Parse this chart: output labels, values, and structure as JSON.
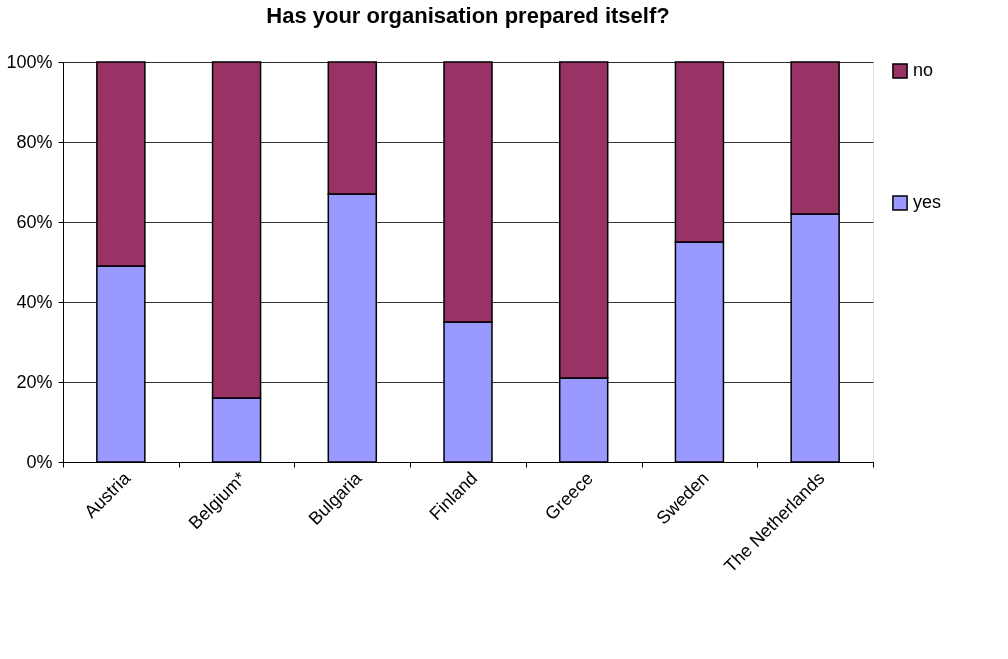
{
  "chart_data": {
    "type": "bar",
    "title": "Has your organisation prepared itself?",
    "stacked": true,
    "categories": [
      "Austria",
      "Belgium*",
      "Bulgaria",
      "Finland",
      "Greece",
      "Sweden",
      "The Netherlands"
    ],
    "series": [
      {
        "name": "yes",
        "color": "#9999ff",
        "values": [
          49,
          16,
          67,
          35,
          21,
          55,
          62
        ]
      },
      {
        "name": "no",
        "color": "#993366",
        "values": [
          51,
          84,
          33,
          65,
          79,
          45,
          38
        ]
      }
    ],
    "ylim": [
      0,
      100
    ],
    "yticks": [
      {
        "value": 0,
        "label": "0%"
      },
      {
        "value": 20,
        "label": "20%"
      },
      {
        "value": 40,
        "label": "40%"
      },
      {
        "value": 60,
        "label": "60%"
      },
      {
        "value": 80,
        "label": "80%"
      },
      {
        "value": 100,
        "label": "100%"
      }
    ],
    "grid": "y",
    "legend": "right"
  }
}
